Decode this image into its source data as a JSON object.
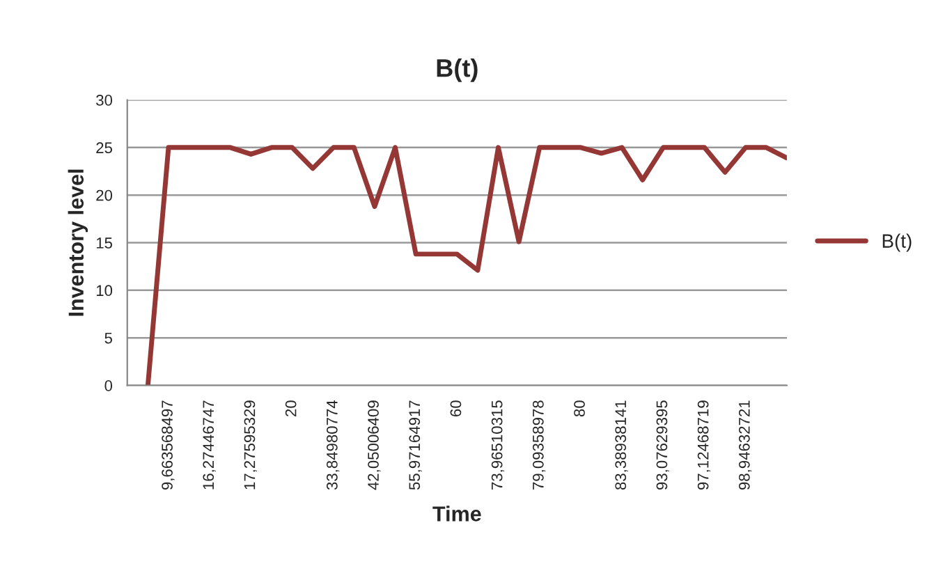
{
  "chart_data": {
    "type": "line",
    "title": "B(t)",
    "xlabel": "Time",
    "ylabel": "Inventory level",
    "categories": [
      null,
      "9,663568497",
      null,
      "16,27446747",
      null,
      "17,27595329",
      null,
      "20",
      null,
      "33,84980774",
      null,
      "42,05006409",
      null,
      "55,97164917",
      null,
      "60",
      null,
      "73,96510315",
      null,
      "79,09358978",
      null,
      "80",
      null,
      "83,38938141",
      null,
      "93,07629395",
      null,
      "97,12468719",
      null,
      "98,94632721",
      null,
      null
    ],
    "series": [
      {
        "name": "B(t)",
        "color": "#953735",
        "values": [
          0,
          25,
          25,
          25,
          25,
          24.3,
          25,
          25,
          22.8,
          25,
          25,
          18.8,
          25,
          13.8,
          13.8,
          13.8,
          12.1,
          25,
          15.1,
          25,
          25,
          25,
          24.4,
          25,
          21.6,
          25,
          25,
          25,
          22.4,
          25,
          25,
          23.9
        ]
      }
    ],
    "ylim": [
      0,
      30
    ],
    "yticks": [
      0,
      5,
      10,
      15,
      20,
      25,
      30
    ],
    "grid": "y",
    "legend": "right",
    "marker": "none",
    "line_style": "solid"
  }
}
